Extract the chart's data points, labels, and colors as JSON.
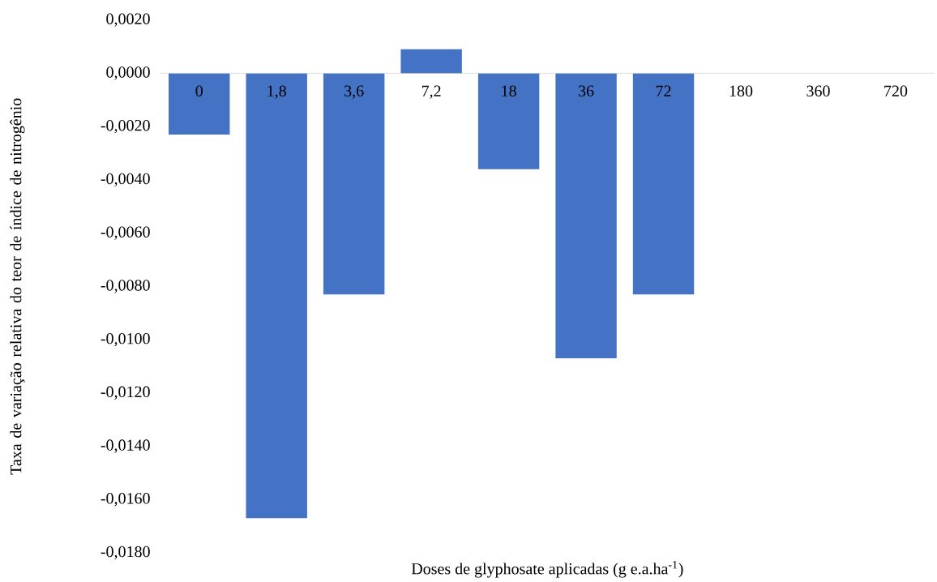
{
  "chart_data": {
    "type": "bar",
    "xlabel": "Doses de glyphosate aplicadas (g e.a.ha$^{-1}$)",
    "ylabel": "Taxa de variação relativa do teor de índice de nitrogênio",
    "categories": [
      "0",
      "1,8",
      "3,6",
      "7,2",
      "18",
      "36",
      "72",
      "180",
      "360",
      "720"
    ],
    "values": [
      -0.0023,
      -0.0167,
      -0.0083,
      0.0009,
      -0.0036,
      -0.0107,
      -0.0083,
      0,
      0,
      0
    ],
    "color": "#4472c4",
    "ylim": [
      -0.018,
      0.002
    ],
    "yticks": [
      {
        "value": 0.002,
        "label": "0,0020"
      },
      {
        "value": 0.0,
        "label": "0,0000"
      },
      {
        "value": -0.002,
        "label": "-0,0020"
      },
      {
        "value": -0.004,
        "label": "-0,0040"
      },
      {
        "value": -0.006,
        "label": "-0,0060"
      },
      {
        "value": -0.008,
        "label": "-0,0080"
      },
      {
        "value": -0.01,
        "label": "-0,0100"
      },
      {
        "value": -0.012,
        "label": "-0,0120"
      },
      {
        "value": -0.014,
        "label": "-0,0140"
      },
      {
        "value": -0.016,
        "label": "-0,0160"
      },
      {
        "value": -0.018,
        "label": "-0,0180"
      }
    ]
  }
}
